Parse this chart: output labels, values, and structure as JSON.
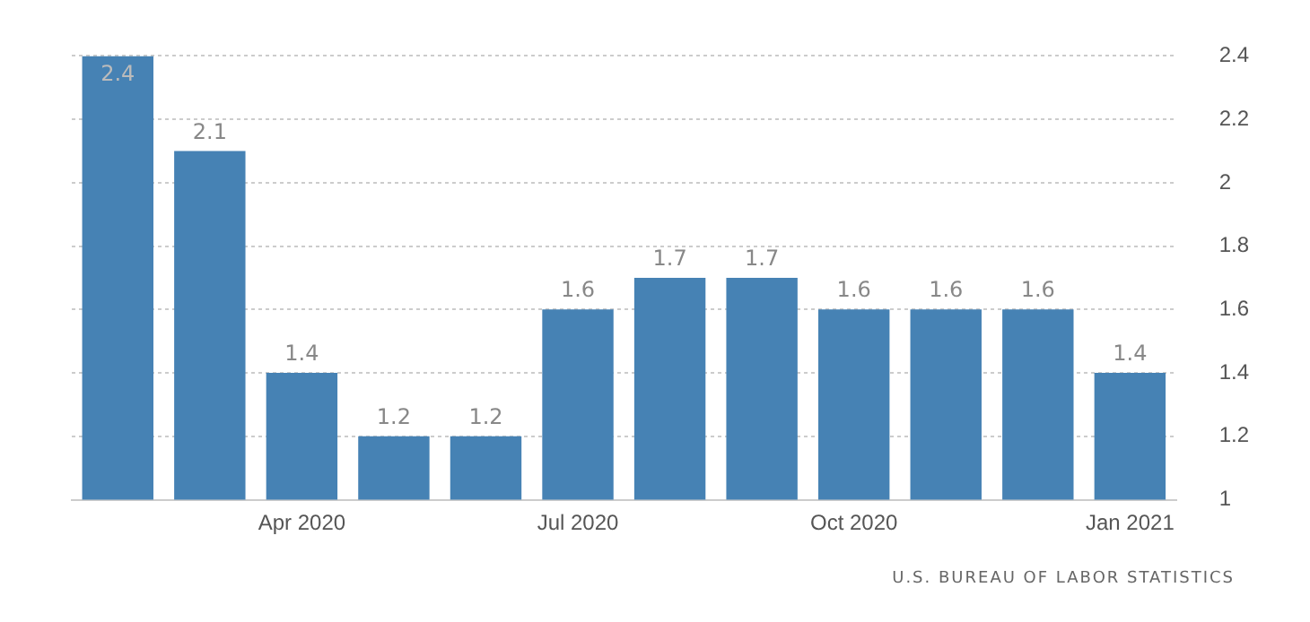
{
  "chart_data": {
    "type": "bar",
    "categories": [
      null,
      null,
      "Apr 2020",
      null,
      null,
      "Jul 2020",
      null,
      null,
      "Oct 2020",
      null,
      null,
      "Jan 2021"
    ],
    "values": [
      2.4,
      2.1,
      1.4,
      1.2,
      1.2,
      1.6,
      1.7,
      1.7,
      1.6,
      1.6,
      1.6,
      1.4
    ],
    "color": "#4682b4",
    "ylim": [
      1,
      2.4
    ],
    "yticks": [
      1,
      1.2,
      1.4,
      1.6,
      1.8,
      2,
      2.2,
      2.4
    ],
    "grid": "y",
    "data_labels": true,
    "annotations": [
      "U.S. BUREAU OF LABOR STATISTICS"
    ]
  }
}
